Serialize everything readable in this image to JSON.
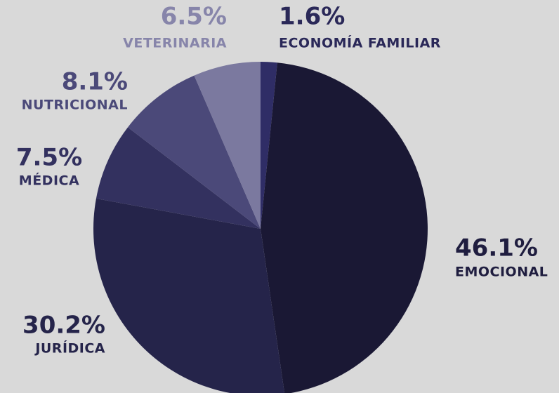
{
  "chart_data": {
    "type": "pie",
    "categories": [
      "ECONOMÍA FAMILIAR",
      "EMOCIONAL",
      "JURÍDICA",
      "MÉDICA",
      "NUTRICIONAL",
      "VETERINARIA"
    ],
    "values": [
      1.6,
      46.1,
      30.2,
      7.5,
      8.1,
      6.5
    ],
    "value_labels": [
      "1.6%",
      "46.1%",
      "30.2%",
      "7.5%",
      "8.1%",
      "6.5%"
    ],
    "colors": [
      "#2f2d66",
      "#1a1834",
      "#25244a",
      "#33315f",
      "#4b4979",
      "#7b799f"
    ],
    "label_colors": [
      "#2a2858",
      "#1f1d3f",
      "#25244a",
      "#33315f",
      "#4b4979",
      "#8785aa"
    ]
  }
}
